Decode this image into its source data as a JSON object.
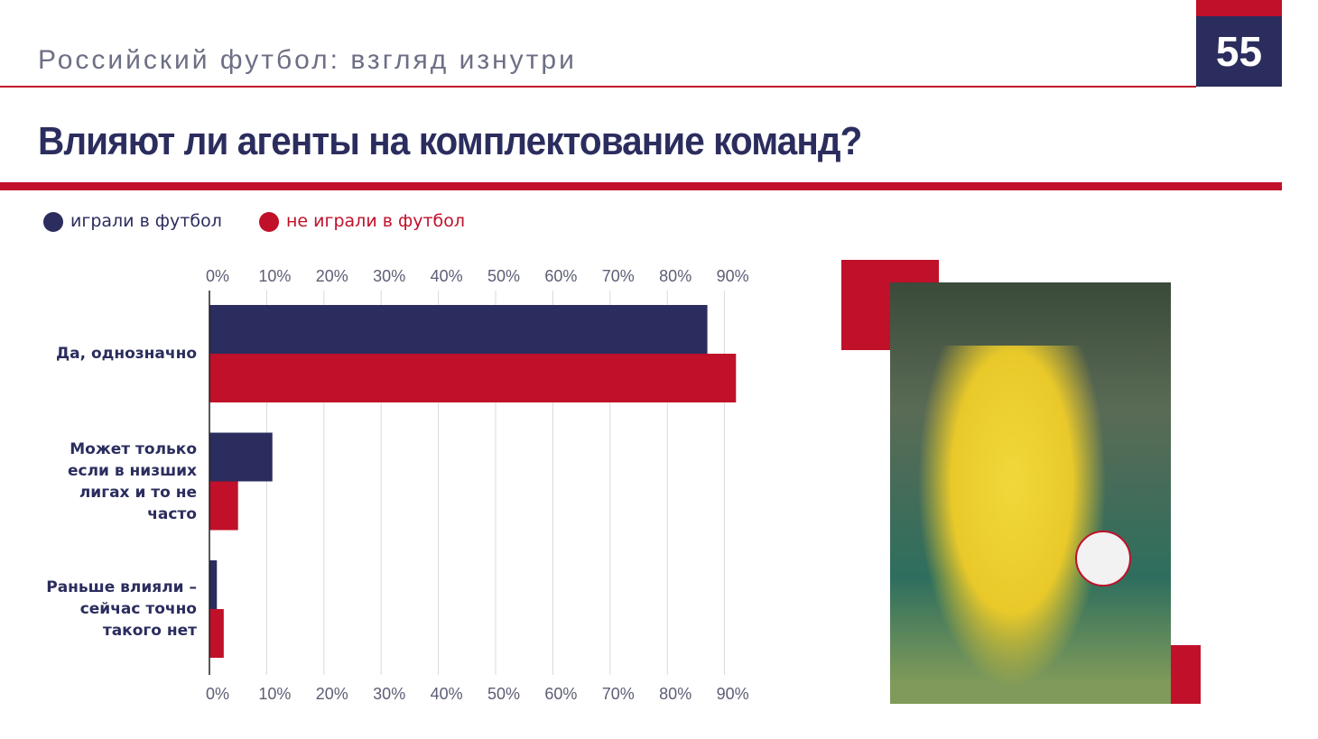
{
  "header": {
    "subtitle": "Российский футбол: взгляд изнутри",
    "page_number": "55"
  },
  "chart_data": {
    "type": "barh",
    "title": "Влияют ли агенты на комплектование команд?",
    "categories": [
      "Да, однозначно",
      "Может только если в низших лигах и то не часто",
      "Раньше влияли – сейчас точно такого нет"
    ],
    "series": [
      {
        "name": "играли в футбол",
        "color": "#2b2d5e",
        "values": [
          87,
          11,
          1.3
        ]
      },
      {
        "name": "не играли в футбол",
        "color": "#c0102a",
        "values": [
          92,
          5,
          2.5
        ]
      }
    ],
    "xlim": [
      0,
      95
    ],
    "xticks": [
      {
        "value": 0,
        "label": "0%"
      },
      {
        "value": 10,
        "label": "10%"
      },
      {
        "value": 20,
        "label": "20%"
      },
      {
        "value": 30,
        "label": "30%"
      },
      {
        "value": 40,
        "label": "40%"
      },
      {
        "value": 50,
        "label": "50%"
      },
      {
        "value": 60,
        "label": "60%"
      },
      {
        "value": 70,
        "label": "70%"
      },
      {
        "value": 80,
        "label": "80%"
      },
      {
        "value": 90,
        "label": "90%"
      }
    ],
    "grid": true
  }
}
